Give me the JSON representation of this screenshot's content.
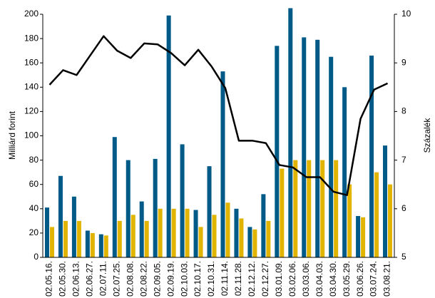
{
  "chart_data": {
    "type": "bar-line",
    "y_label": "Milliárd forint",
    "y2_label": "Százalék",
    "categories": [
      "02.05.16.",
      "02.05.30.",
      "02.06.13.",
      "02.06.27.",
      "02.07.11.",
      "02.07.25.",
      "02.08.08.",
      "02.08.22.",
      "02.09.05.",
      "02.09.19.",
      "02.10.03.",
      "02.10.17.",
      "02.10.31.",
      "02.11.14.",
      "02.11.28.",
      "02.12.12.",
      "02.12.27.",
      "03.01.09.",
      "03.02.06.",
      "03.03.06.",
      "03.04.03.",
      "03.04.30.",
      "03.05.29.",
      "03.06.26.",
      "03.07.24.",
      "03.08.21."
    ],
    "series": [
      {
        "color": "#005a87",
        "values": [
          41,
          67,
          50,
          22,
          19,
          99,
          80,
          46,
          81,
          199,
          93,
          39,
          75,
          153,
          40,
          25,
          52,
          174,
          205,
          181,
          179,
          165,
          140,
          34,
          166,
          92
        ]
      },
      {
        "color": "#e0b400",
        "values": [
          25,
          30,
          30,
          20,
          18,
          30,
          35,
          30,
          40,
          40,
          40,
          25,
          35,
          45,
          32,
          23,
          30,
          73,
          80,
          80,
          80,
          80,
          60,
          33,
          70,
          60
        ]
      },
      {
        "color": "#000000",
        "axis": "y2",
        "values": [
          8.55,
          8.85,
          8.75,
          9.15,
          9.55,
          9.25,
          9.1,
          9.4,
          9.38,
          9.2,
          8.95,
          9.27,
          8.92,
          8.48,
          7.4,
          7.4,
          7.35,
          6.9,
          6.85,
          6.65,
          6.65,
          6.35,
          6.28,
          7.85,
          8.45,
          8.58
        ]
      }
    ],
    "ylim": [
      0,
      200
    ],
    "yticks": [
      0,
      20,
      40,
      60,
      80,
      100,
      120,
      140,
      160,
      180,
      200
    ],
    "y2lim": [
      5,
      10
    ],
    "y2ticks": [
      5,
      6,
      7,
      8,
      9,
      10
    ]
  }
}
